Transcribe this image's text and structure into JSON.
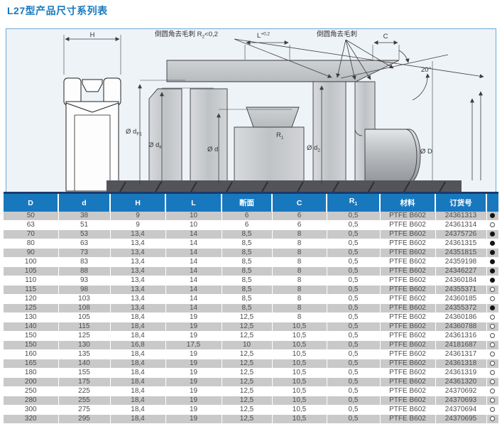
{
  "page": {
    "title": "L27型产品尺寸系列表"
  },
  "drawing": {
    "labels": {
      "h": "H",
      "deburr_left": {
        "base": "倒圆角去毛刺 R",
        "sub": "2",
        "suffix": "<0,2"
      },
      "l": {
        "base": "L",
        "sup": "+0,2"
      },
      "deburr_right": "倒圆角去毛刺",
      "c": "C",
      "angle": "20°",
      "d_f1": {
        "base": "Ø d",
        "sub": "F1"
      },
      "d_f": {
        "base": "Ø d",
        "sub": "F"
      },
      "d": "Ø d",
      "r1": {
        "base": "R",
        "sub": "1"
      },
      "d2": {
        "base": "Ø d",
        "sub": "2"
      },
      "big_d": "Ø D"
    }
  },
  "table": {
    "headers": [
      {
        "label": "D"
      },
      {
        "label": "d"
      },
      {
        "label": "H"
      },
      {
        "label": "L"
      },
      {
        "label": "断面"
      },
      {
        "label": "C"
      },
      {
        "label": "R",
        "sub": "1"
      },
      {
        "label": "材料"
      },
      {
        "label": "订货号"
      },
      {
        "label": ""
      }
    ],
    "rows": [
      {
        "D": "50",
        "d": "38",
        "H": "9",
        "L": "10",
        "section": "6",
        "C": "6",
        "R1": "0,5",
        "material": "PTFE B602",
        "order_no": "24361313",
        "stock": "filled"
      },
      {
        "D": "63",
        "d": "51",
        "H": "9",
        "L": "10",
        "section": "6",
        "C": "6",
        "R1": "0,5",
        "material": "PTFE B602",
        "order_no": "24361314",
        "stock": "open"
      },
      {
        "D": "70",
        "d": "53",
        "H": "13,4",
        "L": "14",
        "section": "8,5",
        "C": "8",
        "R1": "0,5",
        "material": "PTFE B602",
        "order_no": "24375726",
        "stock": "filled"
      },
      {
        "D": "80",
        "d": "63",
        "H": "13,4",
        "L": "14",
        "section": "8,5",
        "C": "8",
        "R1": "0,5",
        "material": "PTFE B602",
        "order_no": "24361315",
        "stock": "filled"
      },
      {
        "D": "90",
        "d": "73",
        "H": "13,4",
        "L": "14",
        "section": "8,5",
        "C": "8",
        "R1": "0,5",
        "material": "PTFE B602",
        "order_no": "24351815",
        "stock": "filled"
      },
      {
        "D": "100",
        "d": "83",
        "H": "13,4",
        "L": "14",
        "section": "8,5",
        "C": "8",
        "R1": "0,5",
        "material": "PTFE B602",
        "order_no": "24359198",
        "stock": "filled"
      },
      {
        "D": "105",
        "d": "88",
        "H": "13,4",
        "L": "14",
        "section": "8,5",
        "C": "8",
        "R1": "0,5",
        "material": "PTFE B602",
        "order_no": "24346227",
        "stock": "filled"
      },
      {
        "D": "110",
        "d": "93",
        "H": "13,4",
        "L": "14",
        "section": "8,5",
        "C": "8",
        "R1": "0,5",
        "material": "PTFE B602",
        "order_no": "24360184",
        "stock": "filled"
      },
      {
        "D": "115",
        "d": "98",
        "H": "13,4",
        "L": "14",
        "section": "8,5",
        "C": "8",
        "R1": "0,5",
        "material": "PTFE B602",
        "order_no": "24355371",
        "stock": "open"
      },
      {
        "D": "120",
        "d": "103",
        "H": "13,4",
        "L": "14",
        "section": "8,5",
        "C": "8",
        "R1": "0,5",
        "material": "PTFE B602",
        "order_no": "24360185",
        "stock": "open"
      },
      {
        "D": "125",
        "d": "108",
        "H": "13,4",
        "L": "14",
        "section": "8,5",
        "C": "8",
        "R1": "0,5",
        "material": "PTFE B602",
        "order_no": "24355372",
        "stock": "filled"
      },
      {
        "D": "130",
        "d": "105",
        "H": "18,4",
        "L": "19",
        "section": "12,5",
        "C": "8",
        "R1": "0,5",
        "material": "PTFE B602",
        "order_no": "24360186",
        "stock": "open"
      },
      {
        "D": "140",
        "d": "115",
        "H": "18,4",
        "L": "19",
        "section": "12,5",
        "C": "10,5",
        "R1": "0,5",
        "material": "PTFE B602",
        "order_no": "24360788",
        "stock": "open"
      },
      {
        "D": "150",
        "d": "125",
        "H": "18,4",
        "L": "19",
        "section": "12,5",
        "C": "10,5",
        "R1": "0,5",
        "material": "PTFE B602",
        "order_no": "24361316",
        "stock": "open"
      },
      {
        "D": "150",
        "d": "130",
        "H": "16,8",
        "L": "17,5",
        "section": "10",
        "C": "10,5",
        "R1": "0,5",
        "material": "PTFE B602",
        "order_no": "24181687",
        "stock": "open"
      },
      {
        "D": "160",
        "d": "135",
        "H": "18,4",
        "L": "19",
        "section": "12,5",
        "C": "10,5",
        "R1": "0,5",
        "material": "PTFE B602",
        "order_no": "24361317",
        "stock": "open"
      },
      {
        "D": "165",
        "d": "140",
        "H": "18,4",
        "L": "19",
        "section": "12,5",
        "C": "10,5",
        "R1": "0,5",
        "material": "PTFE B602",
        "order_no": "24361318",
        "stock": "open"
      },
      {
        "D": "180",
        "d": "155",
        "H": "18,4",
        "L": "19",
        "section": "12,5",
        "C": "10,5",
        "R1": "0,5",
        "material": "PTFE B602",
        "order_no": "24361319",
        "stock": "open"
      },
      {
        "D": "200",
        "d": "175",
        "H": "18,4",
        "L": "19",
        "section": "12,5",
        "C": "10,5",
        "R1": "0,5",
        "material": "PTFE B602",
        "order_no": "24361320",
        "stock": "open"
      },
      {
        "D": "250",
        "d": "225",
        "H": "18,4",
        "L": "19",
        "section": "12,5",
        "C": "10,5",
        "R1": "0,5",
        "material": "PTFE B602",
        "order_no": "24370692",
        "stock": "open"
      },
      {
        "D": "280",
        "d": "255",
        "H": "18,4",
        "L": "19",
        "section": "12,5",
        "C": "10,5",
        "R1": "0,5",
        "material": "PTFE B602",
        "order_no": "24370693",
        "stock": "open"
      },
      {
        "D": "300",
        "d": "275",
        "H": "18,4",
        "L": "19",
        "section": "12,5",
        "C": "10,5",
        "R1": "0,5",
        "material": "PTFE B602",
        "order_no": "24370694",
        "stock": "open"
      },
      {
        "D": "320",
        "d": "295",
        "H": "18,4",
        "L": "19",
        "section": "12,5",
        "C": "10,5",
        "R1": "0,5",
        "material": "PTFE B602",
        "order_no": "24370695",
        "stock": "open"
      }
    ]
  },
  "colors": {
    "accent_blue": "#1878be",
    "navy_rule": "#1b3c69",
    "stripe_gray": "#c9c9c9",
    "box_border": "#69a9d8",
    "filled_dot": "#141414"
  }
}
